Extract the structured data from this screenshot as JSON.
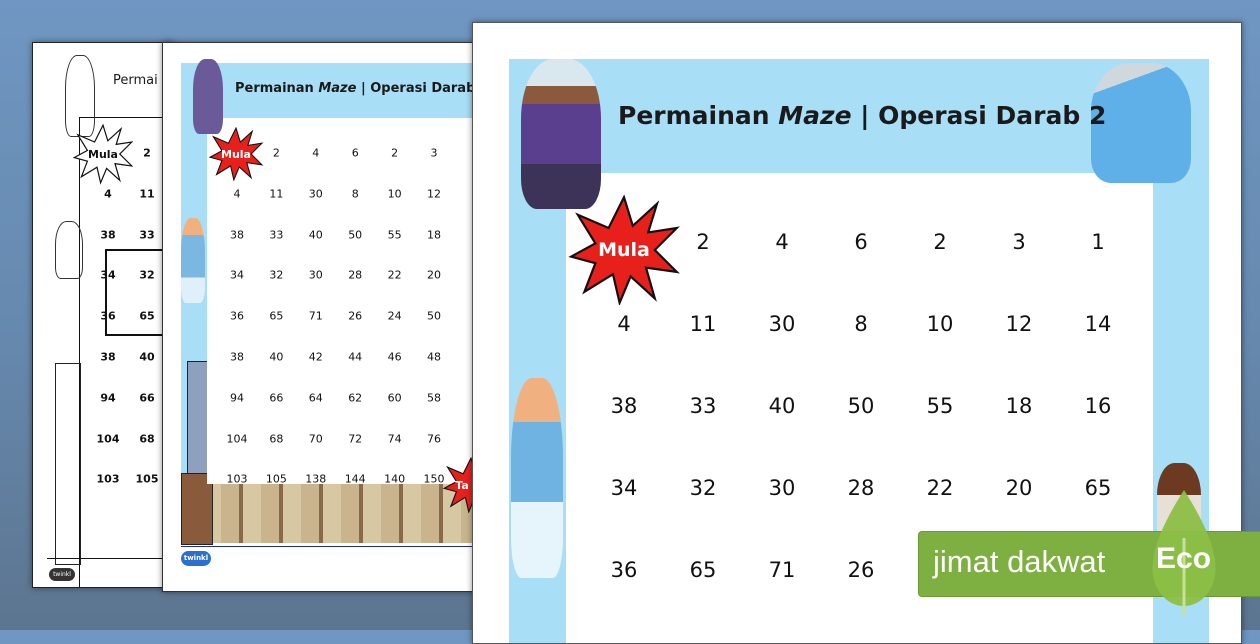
{
  "worksheet": {
    "title_prefix": "Permainan",
    "title_italic": "Maze",
    "title_suffix": "| Operasi Darab 2",
    "start_label": "Mula",
    "end_label": "Ta",
    "logo": "twinkl"
  },
  "back_page": {
    "title_fragment": "Permai",
    "grid": [
      [
        "",
        "2"
      ],
      [
        "4",
        "11"
      ],
      [
        "38",
        "33"
      ],
      [
        "34",
        "32"
      ],
      [
        "36",
        "65"
      ],
      [
        "38",
        "40"
      ],
      [
        "94",
        "66"
      ],
      [
        "104",
        "68"
      ],
      [
        "103",
        "105"
      ]
    ]
  },
  "middle_page": {
    "grid": [
      [
        "",
        "2",
        "4",
        "6",
        "2",
        "3"
      ],
      [
        "4",
        "11",
        "30",
        "8",
        "10",
        "12"
      ],
      [
        "38",
        "33",
        "40",
        "50",
        "55",
        "18"
      ],
      [
        "34",
        "32",
        "30",
        "28",
        "22",
        "20"
      ],
      [
        "36",
        "65",
        "71",
        "26",
        "24",
        "50"
      ],
      [
        "38",
        "40",
        "42",
        "44",
        "46",
        "48"
      ],
      [
        "94",
        "66",
        "64",
        "62",
        "60",
        "58"
      ],
      [
        "104",
        "68",
        "70",
        "72",
        "74",
        "76"
      ],
      [
        "103",
        "105",
        "138",
        "144",
        "140",
        "150"
      ]
    ]
  },
  "front_page": {
    "grid": [
      [
        "",
        "2",
        "4",
        "6",
        "2",
        "3",
        "1"
      ],
      [
        "4",
        "11",
        "30",
        "8",
        "10",
        "12",
        "14"
      ],
      [
        "38",
        "33",
        "40",
        "50",
        "55",
        "18",
        "16"
      ],
      [
        "34",
        "32",
        "30",
        "28",
        "22",
        "20",
        "65"
      ],
      [
        "36",
        "65",
        "71",
        "26",
        "",
        "",
        ""
      ]
    ]
  },
  "eco_banner": {
    "text": "jimat dakwat",
    "badge": "Eco",
    "color": "#7db040"
  },
  "colors": {
    "frame_blue": "#a9def7",
    "burst_red": "#e8201c"
  }
}
